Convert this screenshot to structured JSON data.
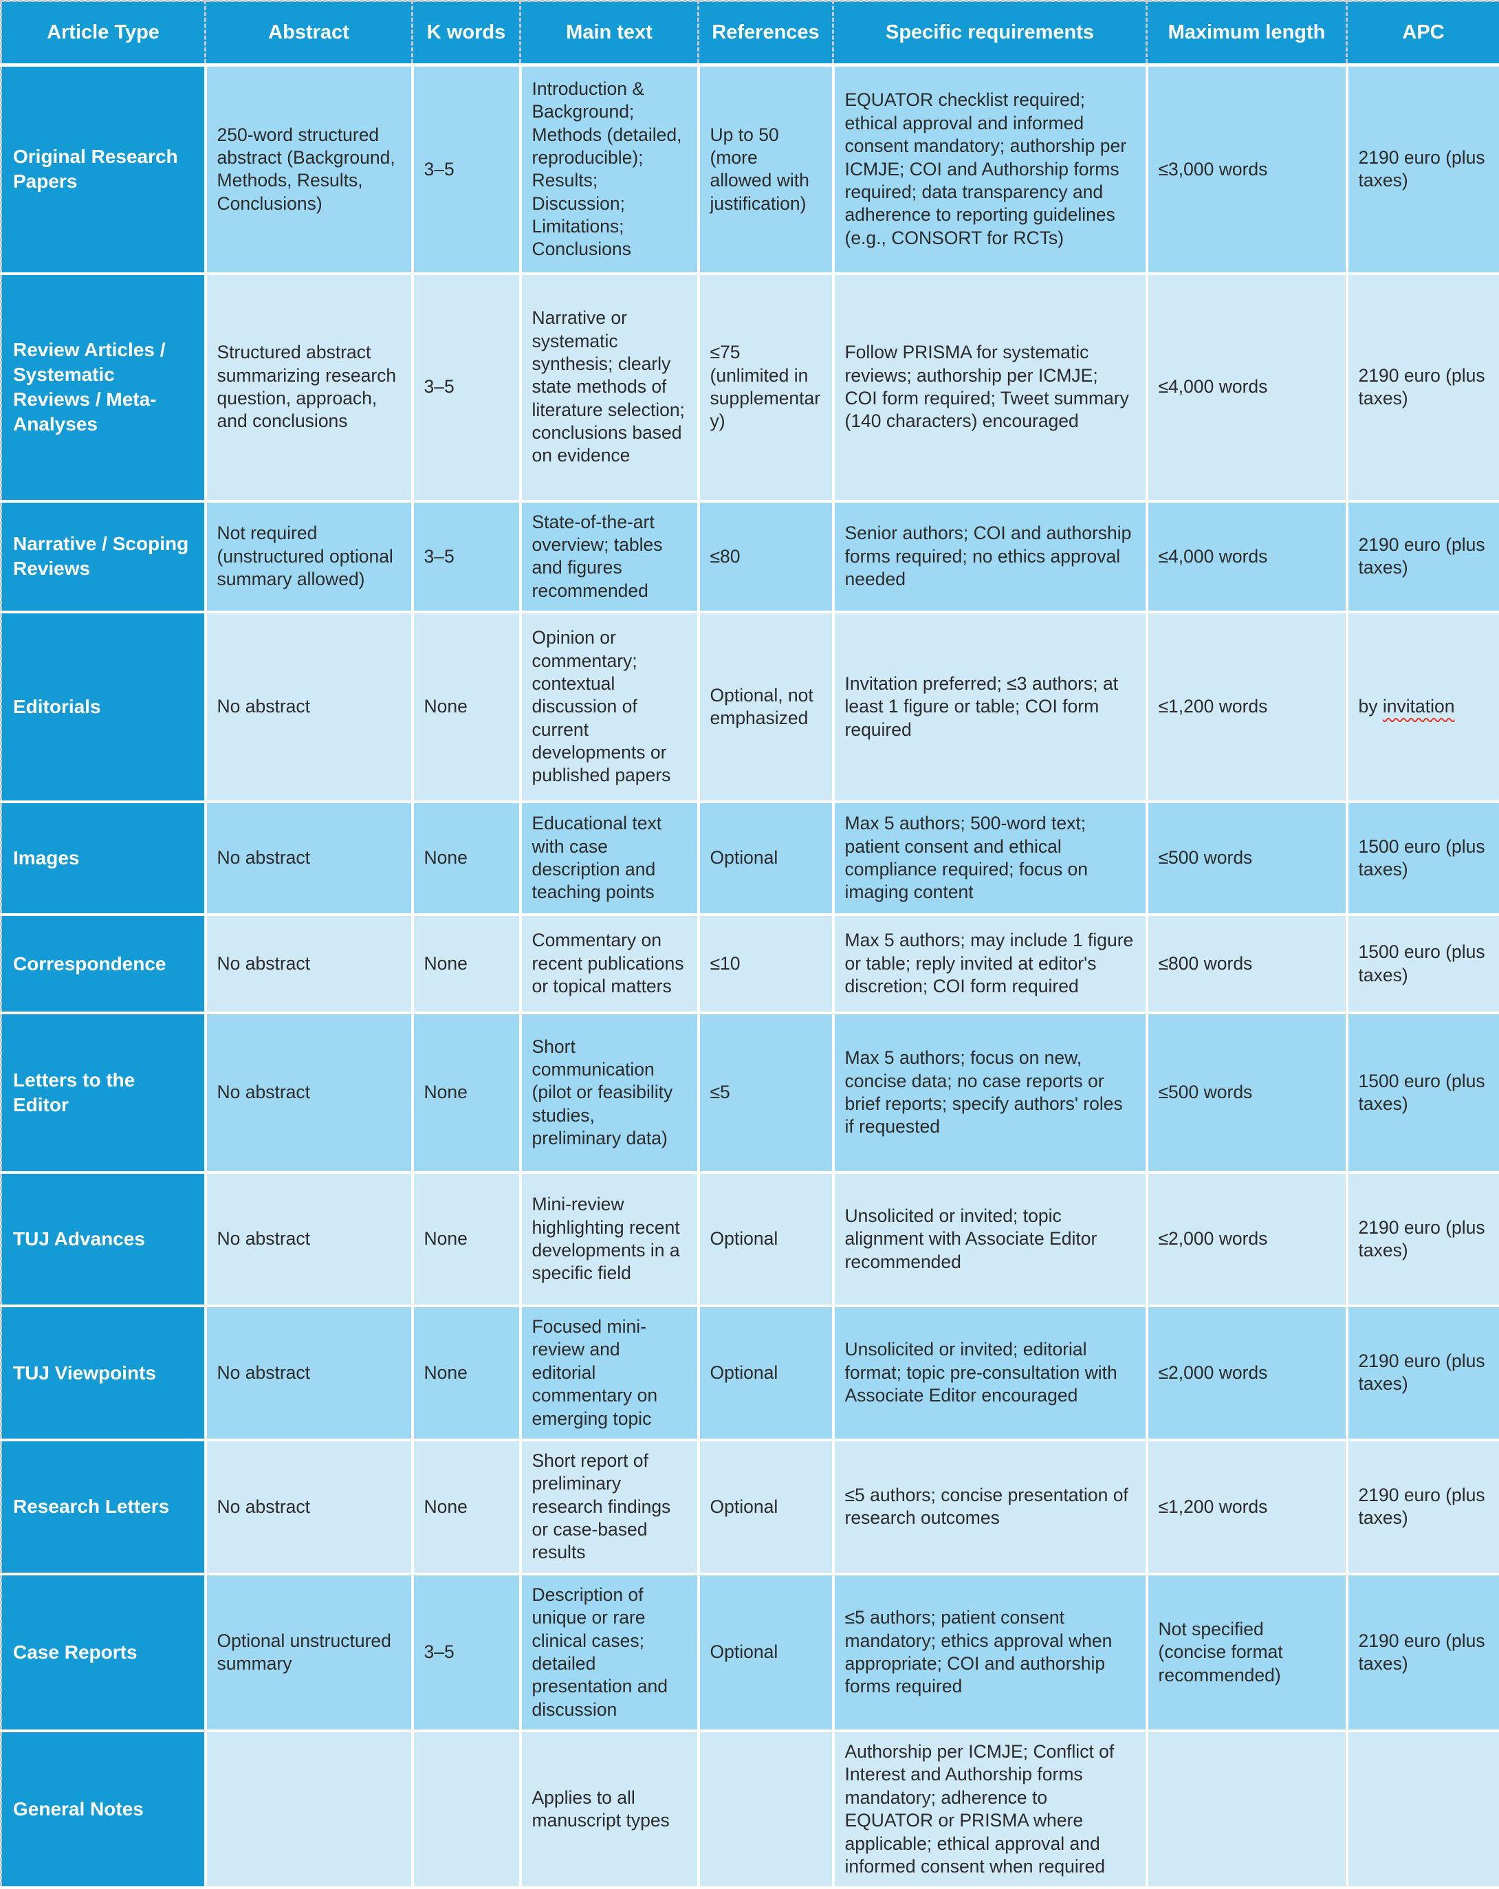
{
  "colors": {
    "header_blue": "#149ad4",
    "row_shade_medium": "#9ed8f2",
    "row_shade_light": "#cfe9f7",
    "body_text": "#2b2b2b",
    "header_text": "#ffffff",
    "spellcheck_underline_red": "#e2362b",
    "grid_white": "#ffffff",
    "dashed_border_gray": "#c3c9ce"
  },
  "table": {
    "columns": [
      "Article Type",
      "Abstract",
      "K words",
      "Main text",
      "References",
      "Specific requirements",
      "Maximum length",
      "APC"
    ],
    "rows": [
      {
        "article_type": "Original Research Papers",
        "cells": [
          "250-word structured abstract (Background, Methods, Results, Conclusions)",
          "3–5",
          "Introduction & Background; Methods (detailed, reproducible); Results; Discussion; Limitations; Conclusions",
          "Up to 50 (more allowed with justification)",
          "EQUATOR checklist required; ethical approval and informed consent mandatory; authorship per ICMJE; COI and Authorship forms required; data transparency and adherence to reporting guidelines (e.g., CONSORT for RCTs)",
          "≤3,000 words",
          "2190 euro (plus taxes)"
        ]
      },
      {
        "article_type": "Review Articles / Systematic Reviews / Meta-Analyses",
        "cells": [
          "Structured abstract summarizing research question, approach, and conclusions",
          "3–5",
          "Narrative or systematic synthesis; clearly state methods of literature selection; conclusions based on evidence",
          "≤75 (unlimited in supplementary)",
          "Follow PRISMA for systematic reviews; authorship per ICMJE; COI form required; Tweet summary (140 characters) encouraged",
          "≤4,000 words",
          "2190 euro (plus taxes)"
        ]
      },
      {
        "article_type": "Narrative / Scoping Reviews",
        "cells": [
          "Not required (unstructured optional summary allowed)",
          "3–5",
          "State-of-the-art overview; tables and figures recommended",
          "≤80",
          "Senior authors; COI and authorship forms required; no ethics approval needed",
          "≤4,000 words",
          "2190 euro (plus taxes)"
        ]
      },
      {
        "article_type": "Editorials",
        "apc_misspelled_word": "invitation",
        "cells": [
          "No abstract",
          "None",
          "Opinion or commentary; contextual discussion of current developments or published papers",
          "Optional, not emphasized",
          "Invitation preferred; ≤3 authors; at least 1 figure or table; COI form required",
          "≤1,200 words",
          "by invitation"
        ]
      },
      {
        "article_type": "Images",
        "cells": [
          "No abstract",
          "None",
          "Educational text with case description and teaching points",
          "Optional",
          "Max 5 authors; 500-word text; patient consent and ethical compliance required; focus on imaging content",
          "≤500 words",
          "1500 euro (plus taxes)"
        ]
      },
      {
        "article_type": "Correspondence",
        "cells": [
          "No abstract",
          "None",
          "Commentary on recent publications or topical matters",
          "≤10",
          "Max 5 authors; may include 1 figure or table; reply invited at editor's discretion; COI form required",
          "≤800 words",
          "1500 euro (plus taxes)"
        ]
      },
      {
        "article_type": "Letters to the Editor",
        "cells": [
          "No abstract",
          "None",
          "Short communication (pilot or feasibility studies, preliminary data)",
          "≤5",
          "Max 5 authors; focus on new, concise data; no case reports or brief reports; specify authors' roles if requested",
          "≤500 words",
          "1500 euro (plus taxes)"
        ]
      },
      {
        "article_type": "TUJ Advances",
        "cells": [
          "No abstract",
          "None",
          "Mini-review highlighting recent developments in a specific field",
          "Optional",
          "Unsolicited or invited; topic alignment with Associate Editor recommended",
          "≤2,000 words",
          "2190 euro (plus taxes)"
        ]
      },
      {
        "article_type": "TUJ Viewpoints",
        "cells": [
          "No abstract",
          "None",
          "Focused mini-review and editorial commentary on emerging topic",
          "Optional",
          "Unsolicited or invited; editorial format; topic pre-consultation with Associate Editor encouraged",
          "≤2,000 words",
          "2190 euro (plus taxes)"
        ]
      },
      {
        "article_type": "Research Letters",
        "cells": [
          "No abstract",
          "None",
          "Short report of preliminary research findings or case-based results",
          "Optional",
          "≤5 authors; concise presentation of research outcomes",
          "≤1,200 words",
          "2190 euro (plus taxes)"
        ]
      },
      {
        "article_type": "Case Reports",
        "cells": [
          "Optional unstructured summary",
          "3–5",
          "Description of unique or rare clinical cases; detailed presentation and discussion",
          "Optional",
          "≤5 authors; patient consent mandatory; ethics approval when appropriate; COI and authorship forms required",
          "Not specified (concise format recommended)",
          "2190 euro (plus taxes)"
        ]
      },
      {
        "article_type": "General Notes",
        "cells": [
          "",
          "",
          "Applies to all manuscript types",
          "",
          "Authorship per ICMJE; Conflict of Interest and Authorship forms mandatory; adherence to EQUATOR or PRISMA where applicable; ethical approval and informed consent when required",
          "",
          ""
        ]
      }
    ]
  }
}
